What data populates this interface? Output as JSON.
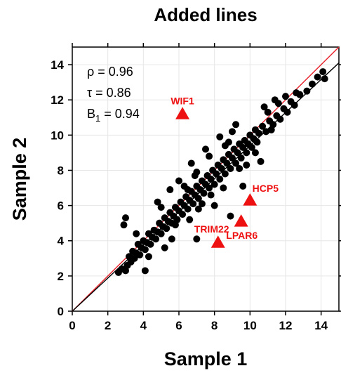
{
  "chart_data": {
    "type": "scatter",
    "title": "Added lines",
    "xlabel": "Sample 1",
    "ylabel": "Sample 2",
    "xlim": [
      0,
      15
    ],
    "ylim": [
      0,
      15
    ],
    "xticks": [
      0,
      2,
      4,
      6,
      8,
      10,
      12,
      14
    ],
    "yticks": [
      0,
      2,
      4,
      6,
      8,
      10,
      12,
      14
    ],
    "grid": true,
    "stats": [
      {
        "symbol": "ρ",
        "sub": "",
        "text": " = 0.96"
      },
      {
        "symbol": "τ",
        "sub": "",
        "text": " = 0.86"
      },
      {
        "symbol": "B",
        "sub": "1",
        "text": " = 0.94"
      }
    ],
    "reference_lines": [
      {
        "kind": "identity",
        "color": "#e8202a",
        "intercept": 0,
        "slope": 1
      },
      {
        "kind": "fit",
        "color": "#000000",
        "intercept": 0,
        "slope": 0.94
      }
    ],
    "outliers": [
      {
        "label": "WIF1",
        "x": 6.2,
        "y": 11.2
      },
      {
        "label": "HCP5",
        "x": 10.0,
        "y": 6.3
      },
      {
        "label": "TRIM22",
        "x": 9.5,
        "y": 5.1
      },
      {
        "label": "LPAR6",
        "x": 8.2,
        "y": 3.9
      }
    ],
    "point_color": "#000000",
    "outlier_color": "#ee1111",
    "points": [
      [
        2.6,
        2.2
      ],
      [
        2.8,
        2.4
      ],
      [
        3.0,
        2.3
      ],
      [
        3.1,
        2.6
      ],
      [
        3.2,
        3.1
      ],
      [
        3.3,
        2.8
      ],
      [
        3.4,
        3.4
      ],
      [
        3.5,
        3.0
      ],
      [
        3.6,
        3.3
      ],
      [
        3.7,
        3.8
      ],
      [
        3.8,
        3.2
      ],
      [
        3.9,
        3.6
      ],
      [
        4.0,
        4.0
      ],
      [
        4.1,
        3.5
      ],
      [
        4.2,
        3.9
      ],
      [
        4.3,
        4.4
      ],
      [
        4.4,
        3.8
      ],
      [
        4.5,
        4.2
      ],
      [
        4.6,
        4.6
      ],
      [
        4.7,
        4.1
      ],
      [
        4.8,
        4.5
      ],
      [
        4.9,
        5.0
      ],
      [
        5.0,
        4.4
      ],
      [
        5.1,
        4.8
      ],
      [
        5.2,
        5.3
      ],
      [
        5.3,
        4.7
      ],
      [
        5.4,
        5.1
      ],
      [
        5.5,
        5.6
      ],
      [
        5.6,
        5.0
      ],
      [
        5.7,
        5.4
      ],
      [
        5.8,
        5.9
      ],
      [
        5.9,
        5.2
      ],
      [
        6.0,
        5.7
      ],
      [
        6.1,
        6.2
      ],
      [
        6.2,
        5.5
      ],
      [
        6.3,
        6.0
      ],
      [
        6.4,
        6.5
      ],
      [
        6.5,
        5.8
      ],
      [
        6.6,
        6.3
      ],
      [
        6.7,
        6.8
      ],
      [
        6.8,
        6.1
      ],
      [
        6.9,
        6.6
      ],
      [
        7.0,
        7.1
      ],
      [
        7.1,
        6.4
      ],
      [
        7.2,
        6.9
      ],
      [
        7.3,
        7.4
      ],
      [
        7.4,
        6.7
      ],
      [
        7.5,
        7.2
      ],
      [
        7.6,
        7.7
      ],
      [
        7.7,
        7.0
      ],
      [
        7.8,
        7.5
      ],
      [
        7.9,
        8.0
      ],
      [
        8.0,
        7.2
      ],
      [
        8.1,
        7.8
      ],
      [
        8.2,
        8.3
      ],
      [
        8.3,
        7.5
      ],
      [
        8.4,
        8.1
      ],
      [
        8.5,
        8.6
      ],
      [
        8.6,
        7.8
      ],
      [
        8.7,
        8.4
      ],
      [
        8.8,
        8.9
      ],
      [
        8.9,
        8.1
      ],
      [
        9.0,
        8.7
      ],
      [
        9.1,
        9.2
      ],
      [
        9.2,
        8.4
      ],
      [
        9.3,
        9.0
      ],
      [
        9.4,
        9.5
      ],
      [
        9.5,
        8.7
      ],
      [
        9.6,
        9.3
      ],
      [
        9.7,
        9.7
      ],
      [
        9.8,
        9.0
      ],
      [
        9.9,
        9.5
      ],
      [
        10.0,
        10.0
      ],
      [
        10.1,
        9.3
      ],
      [
        10.2,
        9.8
      ],
      [
        10.3,
        10.3
      ],
      [
        10.4,
        9.6
      ],
      [
        10.5,
        10.1
      ],
      [
        10.7,
        10.5
      ],
      [
        10.9,
        10.2
      ],
      [
        11.1,
        10.8
      ],
      [
        11.3,
        10.6
      ],
      [
        11.5,
        11.1
      ],
      [
        11.7,
        10.9
      ],
      [
        11.9,
        11.5
      ],
      [
        12.1,
        11.3
      ],
      [
        12.3,
        11.9
      ],
      [
        12.5,
        11.7
      ],
      [
        12.8,
        12.3
      ],
      [
        13.2,
        12.5
      ],
      [
        13.5,
        12.9
      ],
      [
        13.8,
        13.3
      ],
      [
        14.1,
        13.6
      ],
      [
        14.2,
        13.2
      ],
      [
        12.0,
        12.2
      ],
      [
        11.6,
        11.8
      ],
      [
        11.0,
        11.3
      ],
      [
        12.6,
        12.4
      ],
      [
        3.0,
        5.3
      ],
      [
        2.9,
        4.9
      ],
      [
        5.6,
        4.1
      ],
      [
        7.1,
        5.8
      ],
      [
        7.0,
        4.1
      ],
      [
        8.9,
        5.4
      ],
      [
        4.1,
        2.3
      ],
      [
        5.5,
        6.9
      ],
      [
        6.0,
        7.4
      ],
      [
        9.0,
        10.2
      ],
      [
        11.4,
        12.0
      ],
      [
        7.5,
        9.2
      ],
      [
        6.7,
        8.4
      ],
      [
        8.3,
        9.9
      ],
      [
        9.6,
        7.1
      ],
      [
        8.0,
        6.0
      ],
      [
        10.6,
        8.5
      ],
      [
        4.8,
        6.2
      ],
      [
        5.2,
        3.6
      ],
      [
        6.6,
        5.2
      ],
      [
        7.7,
        8.8
      ],
      [
        8.5,
        7.0
      ],
      [
        9.2,
        10.6
      ],
      [
        10.8,
        11.6
      ],
      [
        3.6,
        4.4
      ],
      [
        4.3,
        3.1
      ],
      [
        6.3,
        7.1
      ],
      [
        7.3,
        6.1
      ],
      [
        8.8,
        9.6
      ],
      [
        9.8,
        8.3
      ],
      [
        5.0,
        5.9
      ],
      [
        6.5,
        6.9
      ],
      [
        7.0,
        7.9
      ],
      [
        7.8,
        6.6
      ],
      [
        8.6,
        9.4
      ],
      [
        9.4,
        8.1
      ],
      [
        10.3,
        9.0
      ],
      [
        11.2,
        10.3
      ],
      [
        5.8,
        4.9
      ],
      [
        6.9,
        7.7
      ]
    ]
  }
}
